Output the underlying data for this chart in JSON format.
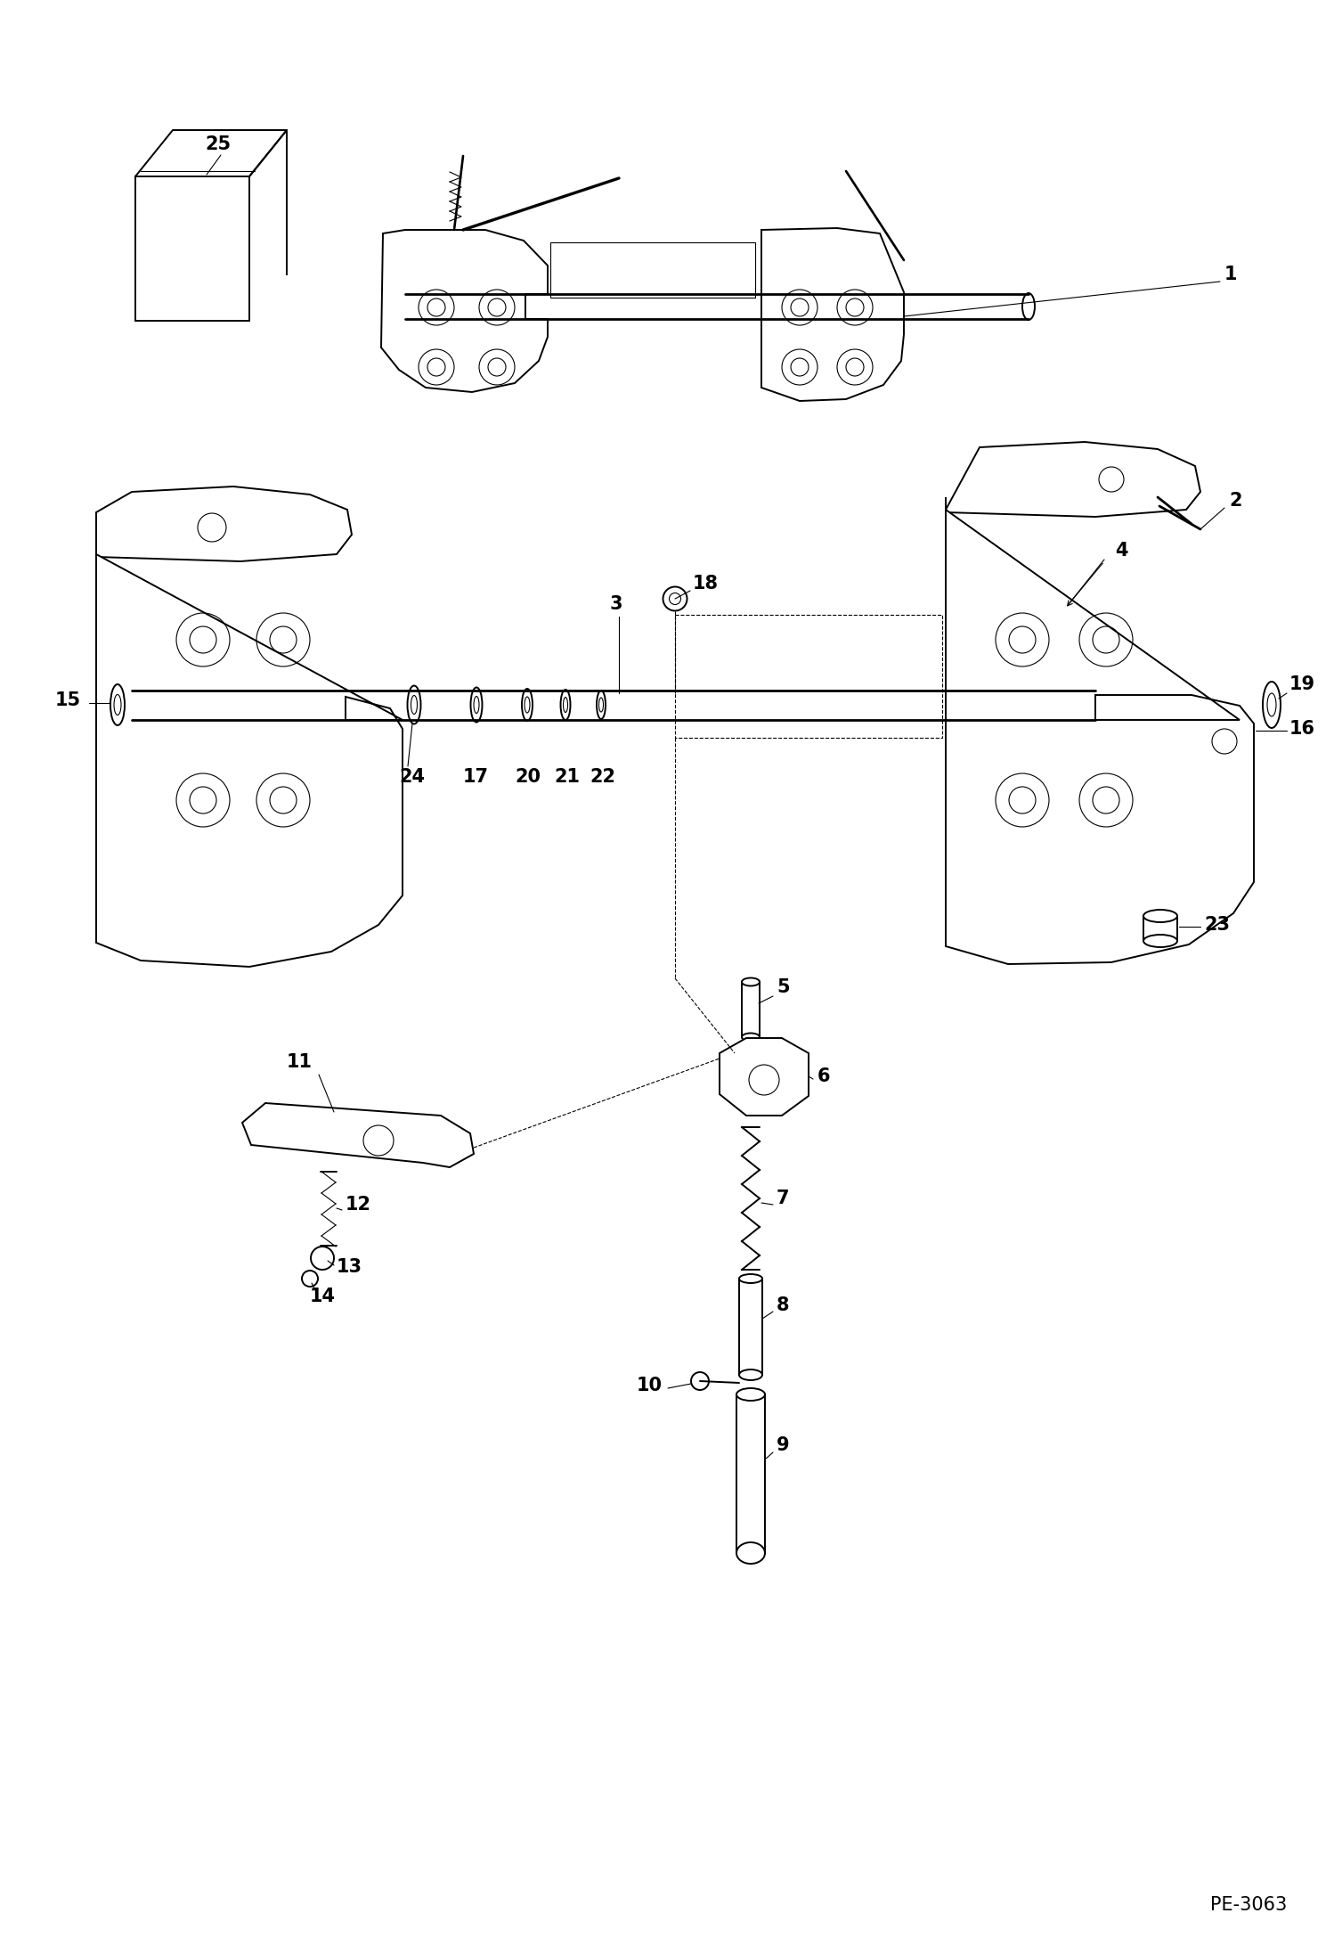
{
  "bg_color": "#ffffff",
  "line_color": "#000000",
  "figsize": [
    14.98,
    21.93
  ],
  "dpi": 100,
  "watermark": "PE-3063"
}
